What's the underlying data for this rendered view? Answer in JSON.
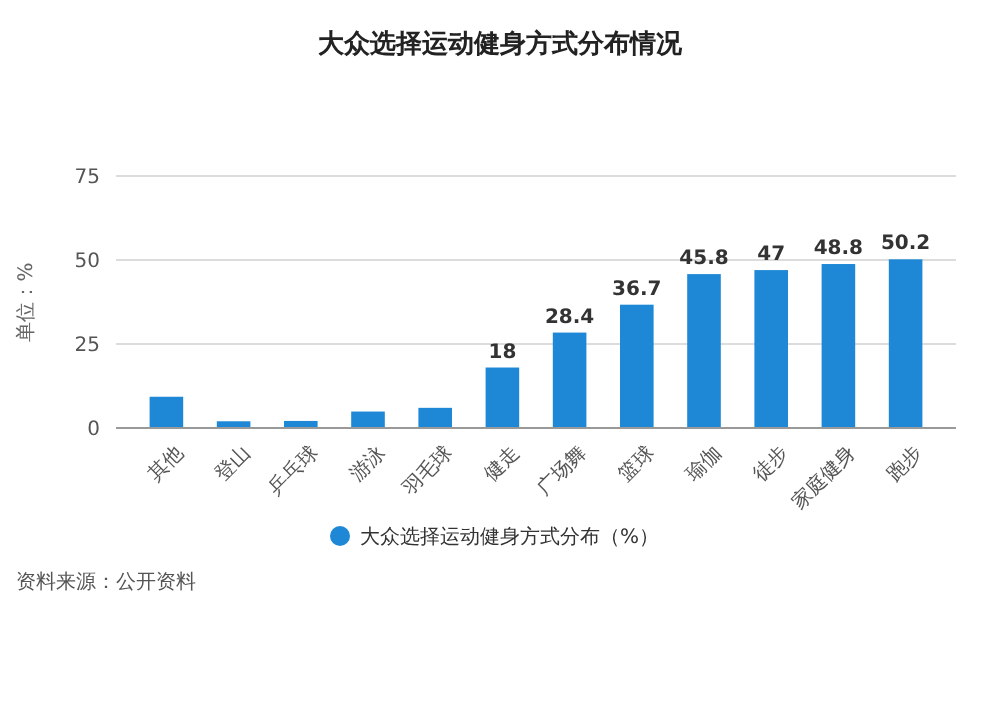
{
  "chart_data": {
    "type": "bar",
    "title": "大众选择运动健身方式分布情况",
    "ylabel": "单位：%",
    "categories": [
      "其他",
      "登山",
      "乒乓球",
      "游泳",
      "羽毛球",
      "健走",
      "广场舞",
      "篮球",
      "瑜伽",
      "徒步",
      "家庭健身",
      "跑步"
    ],
    "series": [
      {
        "name": "大众选择运动健身方式分布（%）",
        "color": "#1e88d6",
        "values": [
          9.3,
          2.0,
          2.1,
          4.9,
          6,
          18,
          28.4,
          36.7,
          45.8,
          47,
          48.8,
          50.2
        ],
        "value_labels": [
          null,
          null,
          null,
          null,
          null,
          "18",
          "28.4",
          "36.7",
          "45.8",
          "47",
          "48.8",
          "50.2"
        ]
      }
    ],
    "ylim": [
      0,
      75
    ],
    "yticks": [
      0,
      25,
      50,
      75
    ],
    "grid": "y",
    "legend": "bottom",
    "annotations": [
      "资料来源：公开资料"
    ]
  }
}
